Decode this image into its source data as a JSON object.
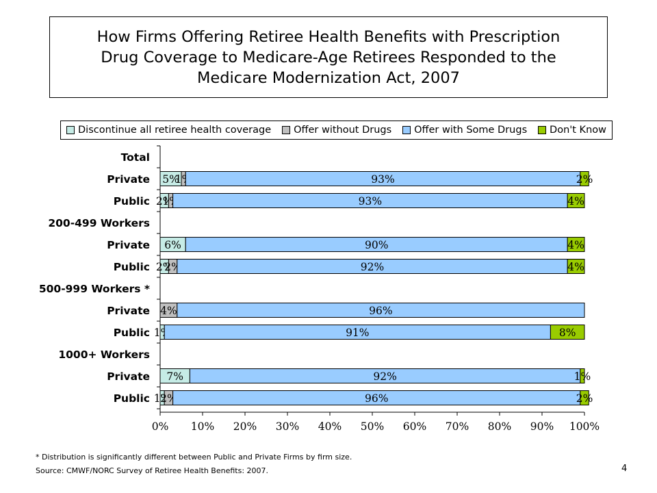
{
  "title": {
    "line1": "How Firms Offering Retiree Health Benefits with Prescription",
    "line2": "Drug Coverage to Medicare-Age Retirees Responded to the",
    "line3": "Medicare Modernization Act, 2007"
  },
  "colors": {
    "discontinue": "#c6ece6",
    "without_drugs": "#c0c0c0",
    "with_some_drugs": "#99ccff",
    "dont_know": "#99cc00",
    "bar_border": "#000000"
  },
  "chart_data": {
    "type": "bar",
    "orientation": "horizontal",
    "stacked": true,
    "legend_position": "top",
    "xlim": [
      0,
      100
    ],
    "x_ticks": [
      "0%",
      "10%",
      "20%",
      "30%",
      "40%",
      "50%",
      "60%",
      "70%",
      "80%",
      "90%",
      "100%"
    ],
    "series": [
      {
        "name": "Discontinue all retiree health coverage",
        "color_key": "discontinue"
      },
      {
        "name": "Offer without Drugs",
        "color_key": "without_drugs"
      },
      {
        "name": "Offer with Some Drugs",
        "color_key": "with_some_drugs"
      },
      {
        "name": "Don't Know",
        "color_key": "dont_know"
      }
    ],
    "rows": [
      {
        "label": "Total",
        "header": true
      },
      {
        "label": "Private",
        "values": [
          5,
          1,
          93,
          2
        ],
        "labels": [
          "5%",
          "1%",
          "93%",
          "2%"
        ]
      },
      {
        "label": "Public",
        "values": [
          2,
          1,
          93,
          4
        ],
        "labels": [
          "2%",
          "1%",
          "93%",
          "4%"
        ]
      },
      {
        "label": "200-499 Workers",
        "header": true
      },
      {
        "label": "Private",
        "values": [
          6,
          0,
          90,
          4
        ],
        "labels": [
          "6%",
          "",
          "90%",
          "4%"
        ]
      },
      {
        "label": "Public",
        "values": [
          2,
          2,
          92,
          4
        ],
        "labels": [
          "2%",
          "2%",
          "92%",
          "4%"
        ]
      },
      {
        "label": "500-999 Workers *",
        "header": true
      },
      {
        "label": "Private",
        "values": [
          0,
          4,
          96,
          0
        ],
        "labels": [
          "",
          "4%",
          "96%",
          ""
        ]
      },
      {
        "label": "Public",
        "values": [
          1,
          0,
          91,
          8
        ],
        "labels": [
          "1%",
          "",
          "91%",
          "8%"
        ]
      },
      {
        "label": "1000+ Workers",
        "header": true
      },
      {
        "label": "Private",
        "values": [
          7,
          0,
          92,
          1
        ],
        "labels": [
          "7%",
          "",
          "92%",
          "1%"
        ]
      },
      {
        "label": "Public",
        "values": [
          1,
          2,
          96,
          2
        ],
        "labels": [
          "1%",
          "2%",
          "96%",
          "2%"
        ]
      }
    ]
  },
  "footnotes": {
    "note": "* Distribution is significantly different between Public and Private Firms by firm size.",
    "source": "Source: CMWF/NORC Survey of Retiree Health Benefits: 2007."
  },
  "page_number": "4"
}
